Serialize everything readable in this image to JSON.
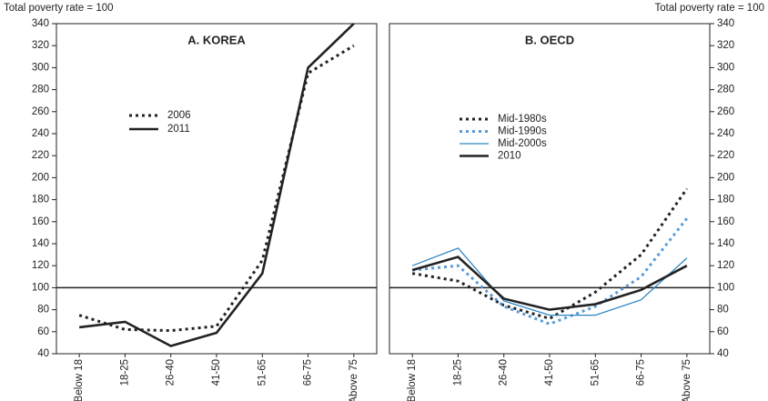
{
  "chart_data": [
    {
      "type": "line",
      "title": "A. KOREA",
      "y_label": "Total poverty rate = 100",
      "yaxis_position": "left",
      "categories": [
        "Below 18",
        "18-25",
        "26-40",
        "41-50",
        "51-65",
        "66-75",
        "Above 75"
      ],
      "ylim": [
        40,
        340
      ],
      "yticks": [
        40,
        60,
        80,
        100,
        120,
        140,
        160,
        180,
        200,
        220,
        240,
        260,
        280,
        300,
        320,
        340
      ],
      "reference_line": 100,
      "series": [
        {
          "name": "2006",
          "color": "#222222",
          "dash": "dotted",
          "values": [
            75,
            62,
            61,
            65,
            125,
            295,
            320
          ]
        },
        {
          "name": "2011",
          "color": "#222222",
          "dash": "solid",
          "values": [
            64,
            69,
            47,
            59,
            113,
            300,
            340
          ]
        }
      ]
    },
    {
      "type": "line",
      "title": "B. OECD",
      "y_label": "Total poverty rate = 100",
      "yaxis_position": "right",
      "categories": [
        "Below 18",
        "18-25",
        "26-40",
        "41-50",
        "51-65",
        "66-75",
        "Above 75"
      ],
      "ylim": [
        40,
        340
      ],
      "yticks": [
        40,
        60,
        80,
        100,
        120,
        140,
        160,
        180,
        200,
        220,
        240,
        260,
        280,
        300,
        320,
        340
      ],
      "reference_line": 100,
      "series": [
        {
          "name": "Mid-1980s",
          "color": "#222222",
          "dash": "dotted",
          "values": [
            113,
            106,
            84,
            72,
            96,
            130,
            190
          ]
        },
        {
          "name": "Mid-1990s",
          "color": "#5b9bd5",
          "dash": "dotted",
          "values": [
            116,
            120,
            83,
            67,
            83,
            110,
            163
          ]
        },
        {
          "name": "Mid-2000s",
          "color": "#2e86c1",
          "dash": "thin",
          "values": [
            120,
            136,
            88,
            75,
            75,
            89,
            127
          ]
        },
        {
          "name": "2010",
          "color": "#222222",
          "dash": "solid",
          "values": [
            116,
            128,
            90,
            80,
            85,
            98,
            120
          ]
        }
      ]
    }
  ]
}
